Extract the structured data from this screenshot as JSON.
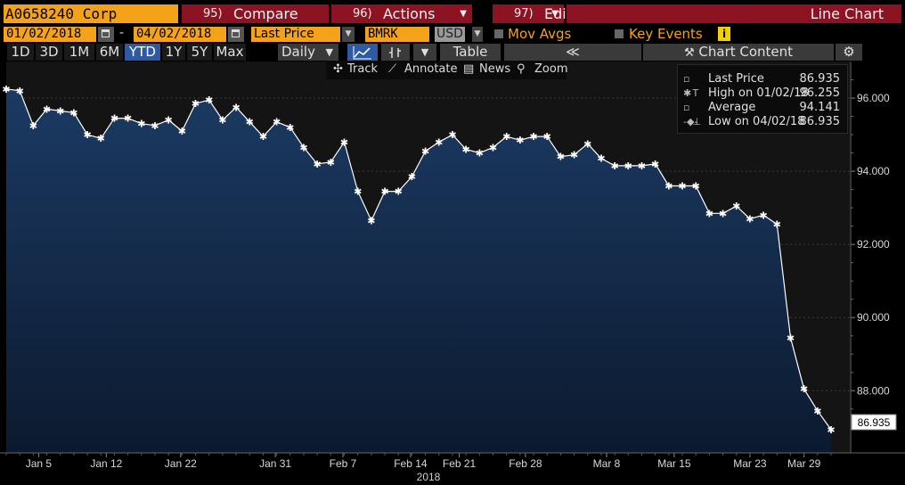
{
  "header": {
    "security": "A0658240 Corp",
    "compare": {
      "num": "95)",
      "label": "Compare"
    },
    "actions": {
      "num": "96)",
      "label": "Actions"
    },
    "edit": {
      "num": "97)",
      "label": "Edit"
    },
    "title": "Line Chart"
  },
  "controls": {
    "start_date": "01/02/2018",
    "dash": "-",
    "end_date": "04/02/2018",
    "field": "Last Price",
    "compare_ticker": "BMRK",
    "currency": "USD",
    "mov_avgs": "Mov Avgs",
    "key_events": "Key Events",
    "info_icon": "i"
  },
  "periods": [
    "1D",
    "3D",
    "1M",
    "6M",
    "YTD",
    "1Y",
    "5Y",
    "Max"
  ],
  "selected_period": "YTD",
  "frequency": "Daily",
  "table_label": "Table",
  "chart_content_label": "Chart Content",
  "tools": {
    "track": "Track",
    "annotate": "Annotate",
    "news": "News",
    "zoom": "Zoom"
  },
  "legend": {
    "last_price": {
      "label": "Last Price",
      "value": "86.935"
    },
    "high": {
      "label": "High on 01/02/18",
      "value": "96.255"
    },
    "average": {
      "label": "Average",
      "value": "94.141"
    },
    "low": {
      "label": "Low on 04/02/18",
      "value": "86.935"
    }
  },
  "last_value_tag": "86.935",
  "colors": {
    "accent_orange": "#f3a21a",
    "header_red": "#8d1323",
    "area_top": "#1b3a63",
    "area_bottom": "#0c1a2f",
    "line": "#ffffff"
  },
  "chart_data": {
    "type": "area",
    "title": "",
    "xlabel": "2018",
    "ylabel": "",
    "ylim": [
      86.3,
      97.0
    ],
    "yticks": [
      88.0,
      90.0,
      92.0,
      94.0,
      96.0
    ],
    "ytick_labels": [
      "88.000",
      "90.000",
      "92.000",
      "94.000",
      "96.000"
    ],
    "xtick_labels": [
      {
        "label": "Jan 5",
        "idx": 2.4
      },
      {
        "label": "Jan 12",
        "idx": 7.4
      },
      {
        "label": "Jan 22",
        "idx": 12.9
      },
      {
        "label": "Jan 31",
        "idx": 19.9
      },
      {
        "label": "Feb 7",
        "idx": 24.9
      },
      {
        "label": "Feb 14",
        "idx": 29.9
      },
      {
        "label": "Feb 21",
        "idx": 33.5
      },
      {
        "label": "Feb 28",
        "idx": 38.4
      },
      {
        "label": "Mar 8",
        "idx": 44.4
      },
      {
        "label": "Mar 15",
        "idx": 49.4
      },
      {
        "label": "Mar 23",
        "idx": 55.0
      },
      {
        "label": "Mar 29",
        "idx": 59.0
      }
    ],
    "series": [
      {
        "values": [
          96.25,
          96.2,
          95.25,
          95.7,
          95.65,
          95.6,
          95.0,
          94.9,
          95.45,
          95.45,
          95.3,
          95.25,
          95.4,
          95.1,
          95.85,
          95.95,
          95.4,
          95.75,
          95.35,
          94.95,
          95.35,
          95.2,
          94.65,
          94.2,
          94.25,
          94.8,
          93.45,
          92.65,
          93.45,
          93.45,
          93.85,
          94.55,
          94.8,
          95.0,
          94.6,
          94.5,
          94.65,
          94.95,
          94.85,
          94.95,
          94.95,
          94.4,
          94.45,
          94.75,
          94.35,
          94.15,
          94.15,
          94.15,
          94.2,
          93.6,
          93.6,
          93.6,
          92.85,
          92.85,
          93.05,
          92.7,
          92.8,
          92.55,
          89.45,
          88.05,
          87.45,
          86.935
        ]
      }
    ]
  }
}
